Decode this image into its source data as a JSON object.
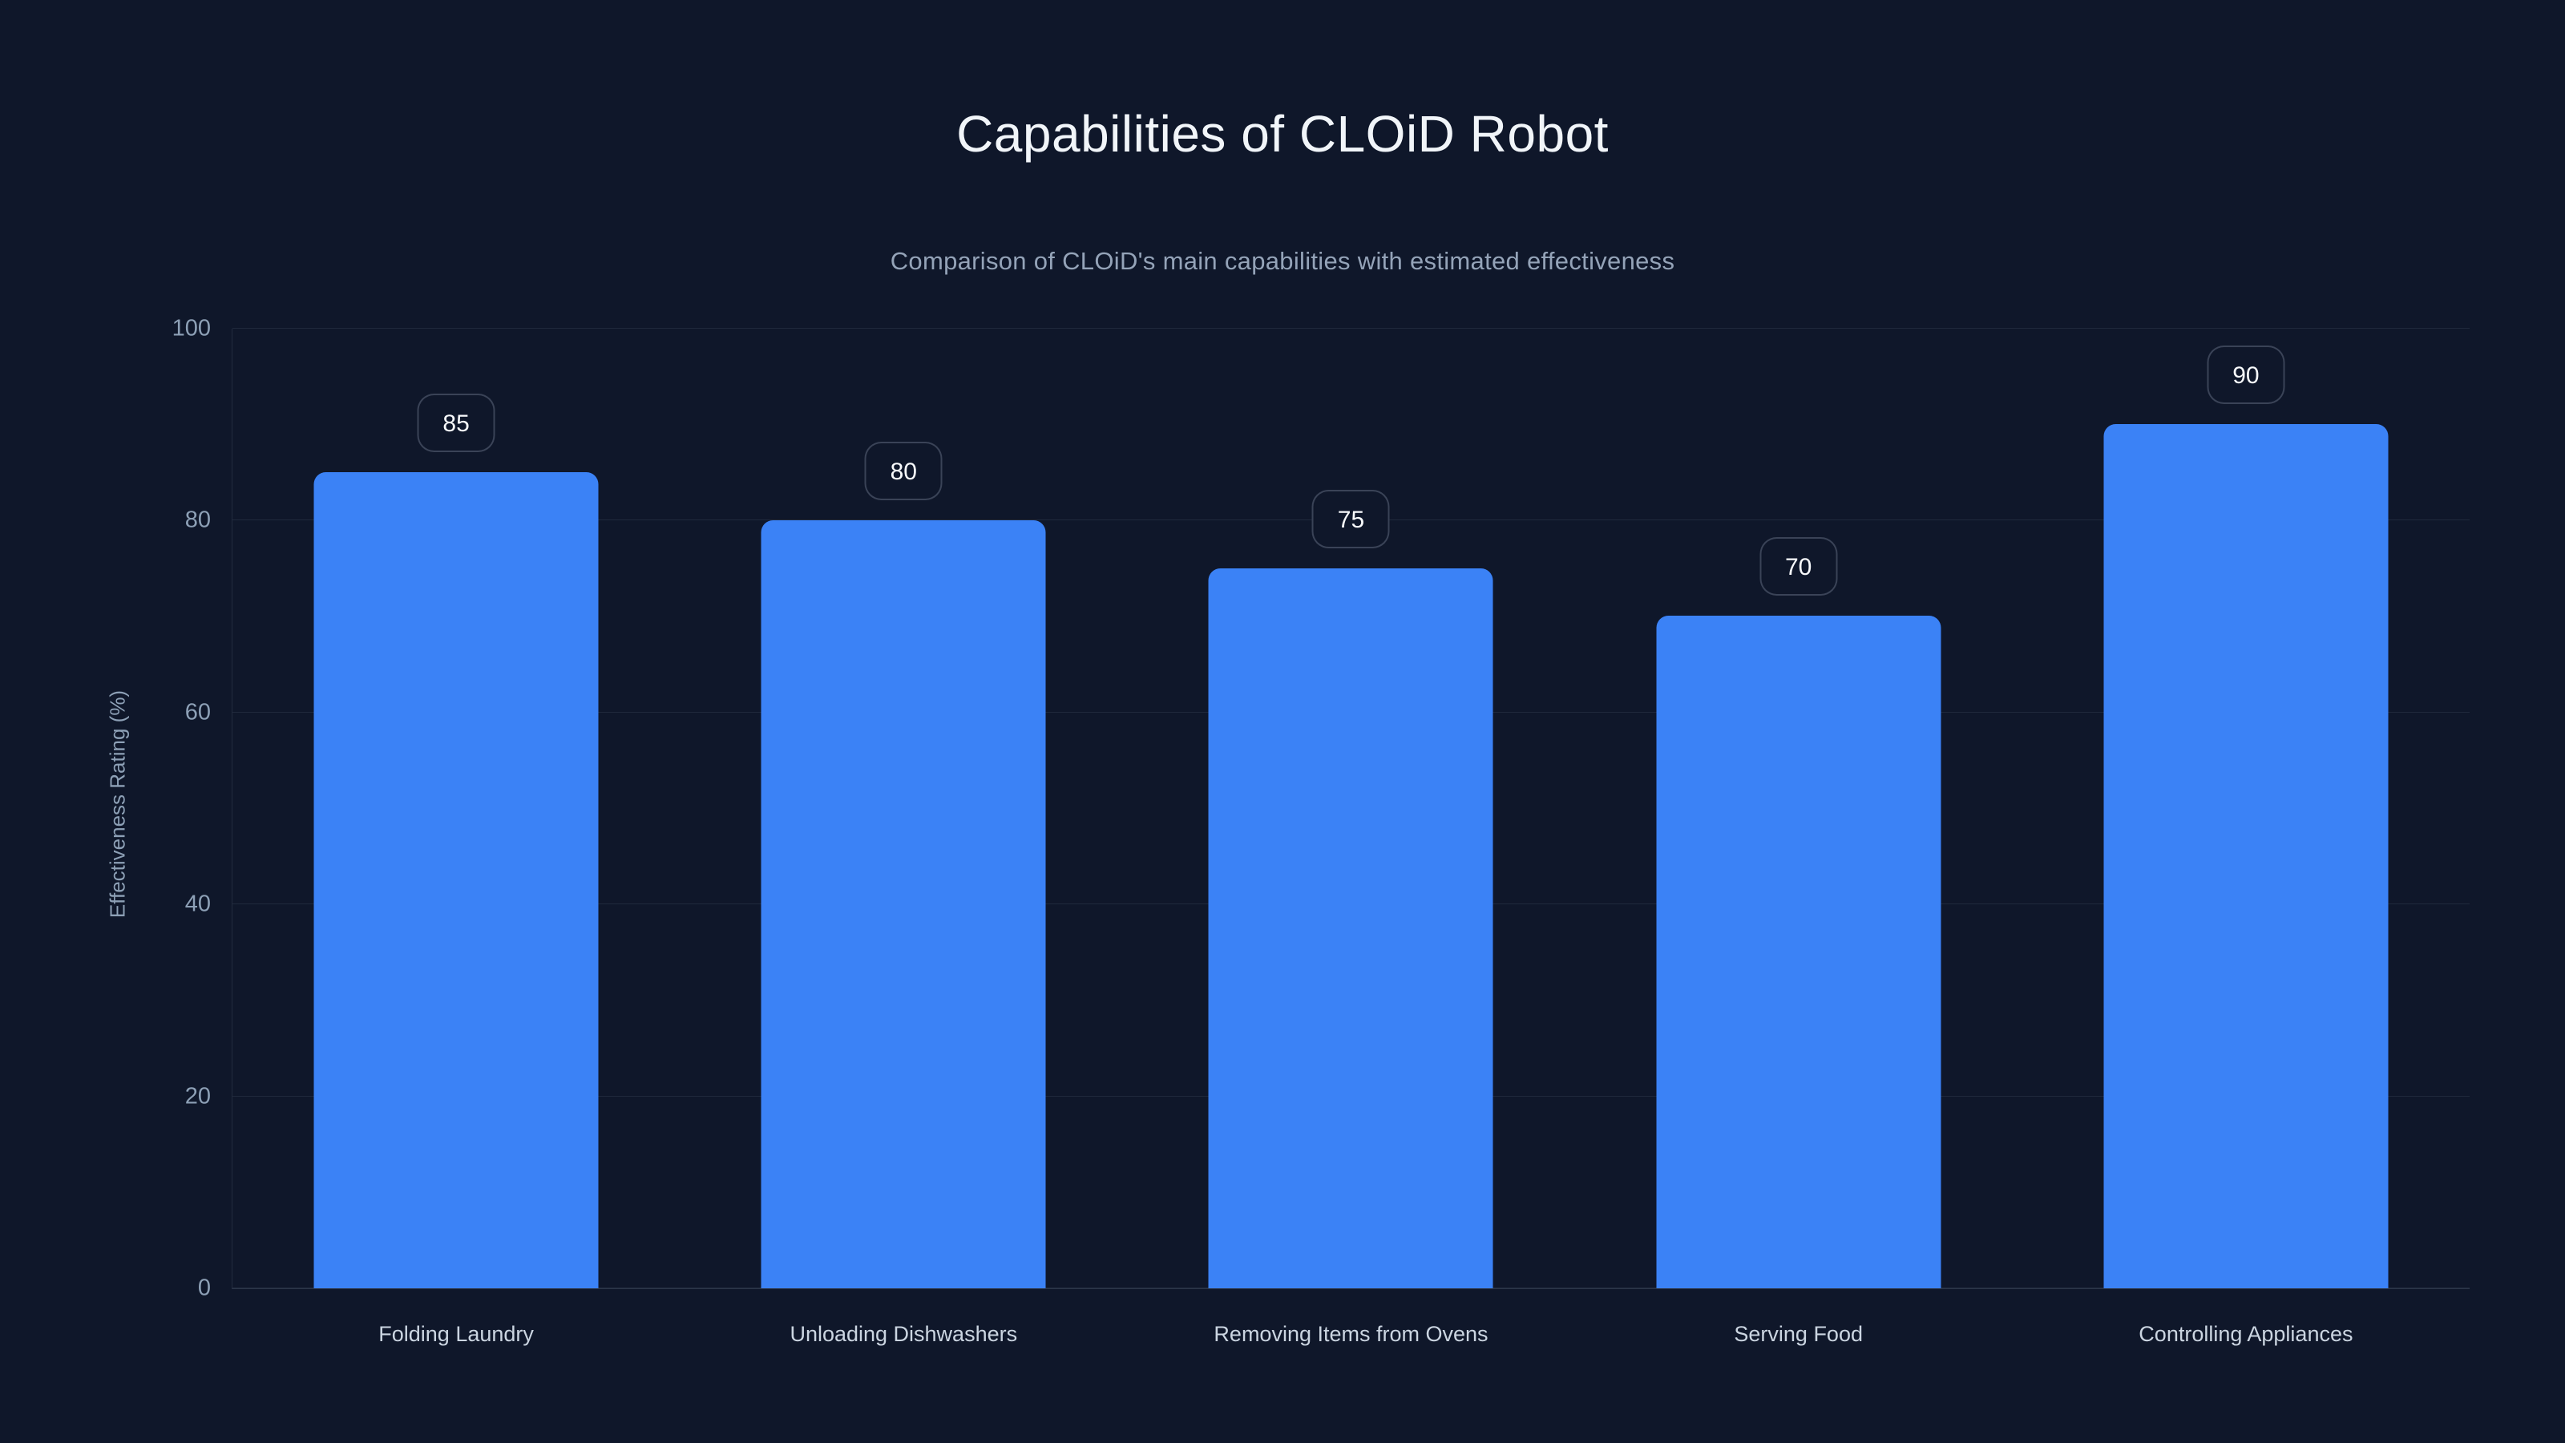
{
  "chart_data": {
    "type": "bar",
    "title": "Capabilities of CLOiD Robot",
    "subtitle": "Comparison of CLOiD's main capabilities with estimated effectiveness",
    "categories": [
      "Folding Laundry",
      "Unloading Dishwashers",
      "Removing Items from Ovens",
      "Serving Food",
      "Controlling Appliances"
    ],
    "values": [
      85,
      80,
      75,
      70,
      90
    ],
    "value_labels": [
      "85",
      "80",
      "75",
      "70",
      "90"
    ],
    "xlabel": "",
    "ylabel": "Effectiveness Rating (%)",
    "ylim": [
      0,
      100
    ],
    "y_ticks": [
      0,
      20,
      40,
      60,
      80,
      100
    ],
    "grid": true,
    "legend": "none",
    "colors": {
      "background": "#0f172a",
      "bar": "#3b82f6",
      "title_text": "#f1f5f9",
      "subtitle_text": "#94a3b8",
      "tick_text": "#8da0b6",
      "category_text": "#cbd5e1",
      "badge_border": "#3e4758",
      "badge_text": "#f8fafc",
      "gridline": "#222c3e"
    }
  }
}
